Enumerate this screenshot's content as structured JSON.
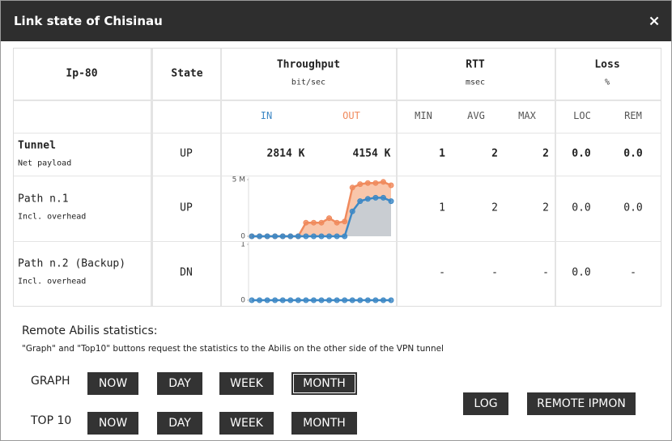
{
  "header": {
    "title": "Link state of Chisinau",
    "close": "×"
  },
  "table": {
    "columns": [
      {
        "title": "Ip-80"
      },
      {
        "title": "State"
      },
      {
        "title": "Throughput",
        "unit": "bit/sec"
      },
      {
        "title": "RTT",
        "unit": "msec"
      },
      {
        "title": "Loss",
        "unit": "%"
      }
    ],
    "subheaders": [
      "IN",
      "OUT",
      "MIN",
      "AVG",
      "MAX",
      "LOC",
      "REM"
    ],
    "rows": [
      {
        "name": "Tunnel",
        "note": "Net payload",
        "state": "UP",
        "in": "2814 K",
        "out": "4154 K",
        "min": "1",
        "avg": "2",
        "max": "2",
        "loc": "0.0",
        "rem": "0.0"
      },
      {
        "name": "Path n.1",
        "note": "Incl. overhead",
        "state": "UP",
        "min": "1",
        "avg": "2",
        "max": "2",
        "loc": "0.0",
        "rem": "0.0"
      },
      {
        "name": "Path n.2 (Backup)",
        "note": "Incl. overhead",
        "state": "DN",
        "min": "-",
        "avg": "-",
        "max": "-",
        "loc": "0.0",
        "rem": "-"
      }
    ]
  },
  "chart_data": [
    {
      "type": "line",
      "ylim": [
        0,
        5
      ],
      "yticks": [
        0,
        {
          "value": 5,
          "label": "5 M"
        }
      ],
      "series": [
        {
          "color": "#f08a5d",
          "fill": "#f9c6ab",
          "values": [
            0,
            0,
            0,
            0,
            0,
            0,
            0,
            1.2,
            1.2,
            1.2,
            1.6,
            1.2,
            1.3,
            4.3,
            4.6,
            4.7,
            4.7,
            4.8,
            4.5
          ]
        },
        {
          "color": "#3d88c5",
          "fill": "#c9cdd2",
          "values": [
            0,
            0,
            0,
            0,
            0,
            0,
            0,
            0,
            0,
            0,
            0,
            0,
            0,
            2.2,
            3.1,
            3.3,
            3.4,
            3.4,
            3.1
          ]
        }
      ]
    },
    {
      "type": "line",
      "ylim": [
        0,
        1
      ],
      "yticks": [
        0,
        1
      ],
      "series": [
        {
          "color": "#3d88c5",
          "values": [
            0,
            0,
            0,
            0,
            0,
            0,
            0,
            0,
            0,
            0,
            0,
            0,
            0,
            0,
            0,
            0,
            0,
            0,
            0
          ]
        }
      ]
    }
  ],
  "remote": {
    "title": "Remote Abilis statistics:",
    "note": "\"Graph\" and \"Top10\" buttons request the statistics to the Abilis on the other side of the VPN tunnel",
    "rows": [
      {
        "label": "GRAPH",
        "buttons": [
          "NOW",
          "DAY",
          "WEEK",
          "MONTH"
        ]
      },
      {
        "label": "TOP 10",
        "buttons": [
          "NOW",
          "DAY",
          "WEEK",
          "MONTH"
        ]
      }
    ],
    "actions": [
      "LOG",
      "REMOTE IPMON"
    ]
  }
}
